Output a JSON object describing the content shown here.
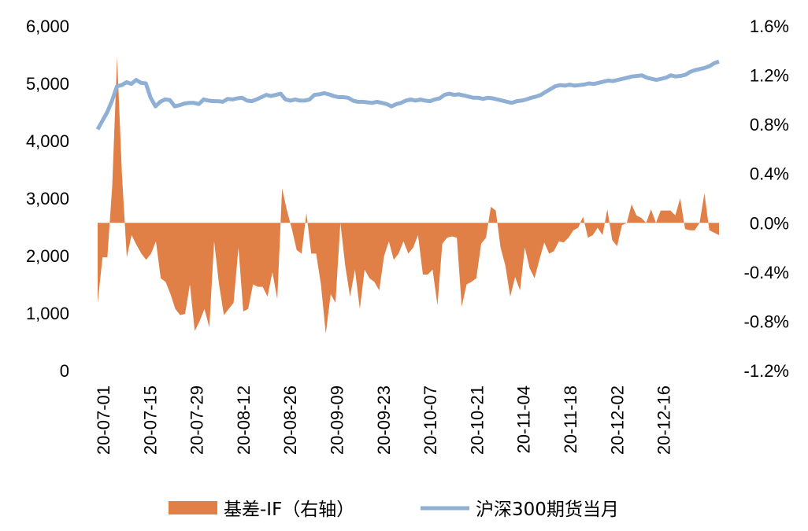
{
  "chart_data": {
    "type": "line",
    "left_axis": {
      "ticks": [
        "6,000",
        "5,000",
        "4,000",
        "3,000",
        "2,000",
        "1,000",
        "0"
      ],
      "ylim": [
        0,
        6000
      ]
    },
    "right_axis": {
      "ticks": [
        "1.6%",
        "1.2%",
        "0.8%",
        "0.4%",
        "0.0%",
        "-0.4%",
        "-0.8%",
        "-1.2%"
      ],
      "ylim": [
        -1.2,
        1.6
      ]
    },
    "x_ticks": [
      "20-07-01",
      "20-07-15",
      "20-07-29",
      "20-08-12",
      "20-08-26",
      "20-09-09",
      "20-09-23",
      "20-10-07",
      "20-10-21",
      "20-11-04",
      "20-11-18",
      "20-12-02",
      "20-12-16"
    ],
    "grid": false,
    "legend_position": "bottom",
    "series": [
      {
        "name": "基差-IF（右轴）",
        "kind": "area",
        "axis": "right",
        "color": "#E07F46",
        "values": [
          -0.65,
          -0.28,
          -0.28,
          0.3,
          1.35,
          0.4,
          -0.28,
          -0.1,
          -0.18,
          -0.25,
          -0.3,
          -0.25,
          -0.15,
          -0.45,
          -0.48,
          -0.58,
          -0.7,
          -0.75,
          -0.74,
          -0.5,
          -0.88,
          -0.8,
          -0.7,
          -0.85,
          -0.15,
          -0.5,
          -0.75,
          -0.7,
          -0.65,
          -0.2,
          -0.72,
          -0.7,
          -0.5,
          -0.52,
          -0.52,
          -0.6,
          -0.4,
          -0.62,
          0.28,
          0.1,
          -0.05,
          -0.22,
          -0.25,
          0.08,
          -0.25,
          -0.25,
          -0.5,
          -0.9,
          -0.58,
          -0.65,
          0.0,
          -0.35,
          -0.6,
          -0.38,
          -0.7,
          -0.38,
          -0.45,
          -0.48,
          -0.55,
          -0.27,
          -0.15,
          -0.3,
          -0.25,
          -0.15,
          -0.25,
          -0.2,
          -0.1,
          -0.42,
          -0.42,
          -0.38,
          -0.67,
          -0.17,
          -0.12,
          -0.11,
          -0.12,
          -0.68,
          -0.5,
          -0.48,
          -0.45,
          -0.17,
          -0.12,
          0.13,
          0.1,
          -0.2,
          -0.35,
          -0.6,
          -0.44,
          -0.55,
          -0.2,
          -0.37,
          -0.45,
          -0.3,
          -0.16,
          -0.25,
          -0.23,
          -0.15,
          -0.16,
          -0.12,
          -0.06,
          -0.04,
          0.05,
          -0.12,
          -0.1,
          -0.04,
          -0.1,
          0.11,
          -0.14,
          -0.19,
          -0.02,
          0.0,
          0.15,
          0.06,
          0.04,
          0.0,
          0.11,
          0.0,
          0.1,
          0.1,
          0.1,
          0.06,
          0.2,
          -0.05,
          -0.06,
          -0.06,
          0.0,
          0.24,
          -0.06,
          -0.08,
          -0.1
        ]
      },
      {
        "name": "沪深300期货当月",
        "kind": "line",
        "axis": "left",
        "color": "#8FAFD4",
        "values": [
          4200,
          4350,
          4500,
          4700,
          4950,
          4970,
          5020,
          4990,
          5060,
          5010,
          5000,
          4750,
          4600,
          4680,
          4720,
          4710,
          4600,
          4620,
          4650,
          4660,
          4660,
          4640,
          4720,
          4700,
          4690,
          4690,
          4680,
          4730,
          4720,
          4740,
          4750,
          4700,
          4690,
          4720,
          4760,
          4800,
          4780,
          4800,
          4820,
          4720,
          4700,
          4720,
          4700,
          4700,
          4720,
          4800,
          4810,
          4830,
          4810,
          4780,
          4760,
          4760,
          4750,
          4700,
          4680,
          4680,
          4670,
          4660,
          4680,
          4660,
          4640,
          4600,
          4640,
          4660,
          4700,
          4720,
          4700,
          4720,
          4700,
          4690,
          4720,
          4740,
          4800,
          4820,
          4800,
          4810,
          4790,
          4770,
          4750,
          4750,
          4730,
          4750,
          4740,
          4720,
          4700,
          4680,
          4660,
          4690,
          4700,
          4720,
          4750,
          4770,
          4800,
          4850,
          4900,
          4950,
          4970,
          4960,
          4980,
          4960,
          4970,
          4980,
          5000,
          4990,
          5010,
          5030,
          5050,
          5040,
          5060,
          5080,
          5100,
          5120,
          5130,
          5140,
          5100,
          5080,
          5060,
          5080,
          5100,
          5140,
          5120,
          5130,
          5150,
          5200,
          5230,
          5250,
          5270,
          5300,
          5350,
          5380
        ]
      }
    ]
  }
}
